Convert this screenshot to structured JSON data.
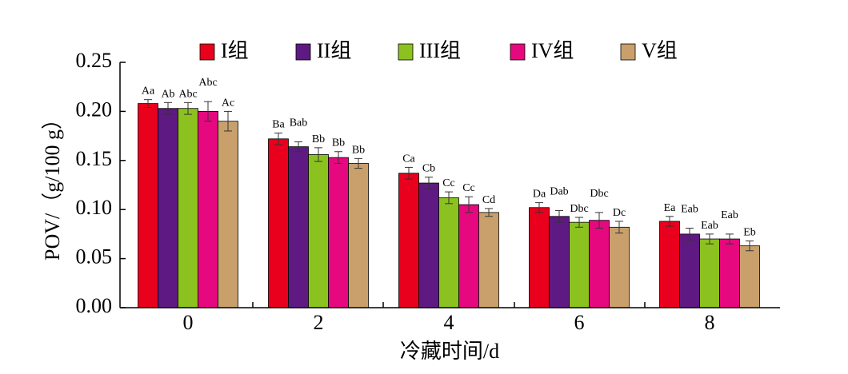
{
  "chart_data": {
    "type": "bar",
    "xlabel": "冷藏时间/d",
    "ylabel": "POV/（g/100 g）",
    "ylim": [
      0,
      0.25
    ],
    "yticks": [
      "0.00",
      "0.05",
      "0.10",
      "0.15",
      "0.20",
      "0.25"
    ],
    "categories": [
      "0",
      "2",
      "4",
      "6",
      "8"
    ],
    "legend_position": "top",
    "series": [
      {
        "name": "I组",
        "color": "#e8001c",
        "values": [
          0.208,
          0.172,
          0.137,
          0.102,
          0.088
        ],
        "errors": [
          0.004,
          0.006,
          0.006,
          0.005,
          0.005
        ],
        "labels": [
          "Aa",
          "Ba",
          "Ca",
          "Da",
          "Ea"
        ]
      },
      {
        "name": "II组",
        "color": "#5e1a82",
        "values": [
          0.203,
          0.164,
          0.127,
          0.093,
          0.075
        ],
        "errors": [
          0.006,
          0.005,
          0.006,
          0.006,
          0.006
        ],
        "labels": [
          "Ab",
          "Bab",
          "Cb",
          "Dab",
          "Eab"
        ]
      },
      {
        "name": "III组",
        "color": "#8cc21f",
        "values": [
          0.203,
          0.156,
          0.112,
          0.087,
          0.07
        ],
        "errors": [
          0.006,
          0.007,
          0.006,
          0.005,
          0.005
        ],
        "labels": [
          "Abc",
          "Bb",
          "Cc",
          "Dbc",
          "Eab"
        ]
      },
      {
        "name": "IV组",
        "color": "#e6087e",
        "values": [
          0.2,
          0.153,
          0.105,
          0.089,
          0.07
        ],
        "errors": [
          0.01,
          0.006,
          0.008,
          0.008,
          0.005
        ],
        "labels": [
          "Abc",
          "Bb",
          "Cc",
          "Dbc",
          "Eab"
        ]
      },
      {
        "name": "V组",
        "color": "#c9a06c",
        "values": [
          0.19,
          0.147,
          0.097,
          0.082,
          0.063
        ],
        "errors": [
          0.01,
          0.005,
          0.004,
          0.006,
          0.005
        ],
        "labels": [
          "Ac",
          "Bb",
          "Cd",
          "Dc",
          "Eb"
        ]
      }
    ]
  }
}
